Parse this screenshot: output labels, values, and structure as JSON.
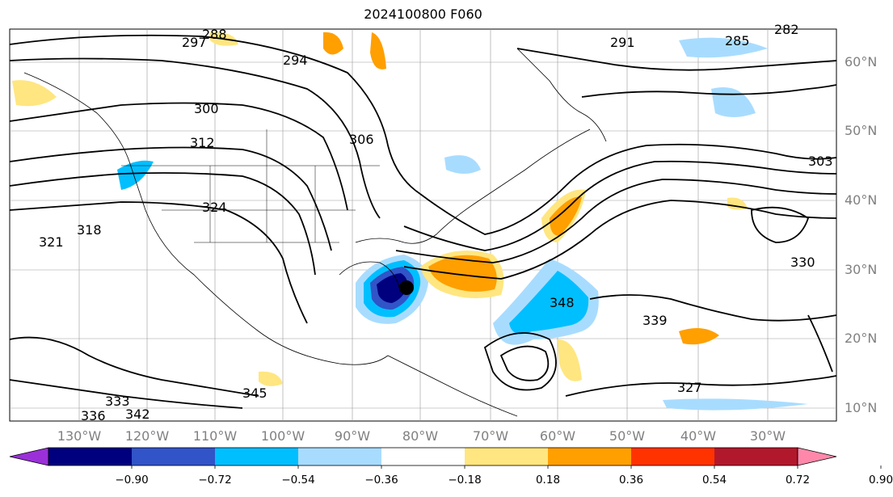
{
  "title": "2024100800 F060",
  "map": {
    "lon_labels": [
      "130°W",
      "120°W",
      "110°W",
      "100°W",
      "90°W",
      "80°W",
      "70°W",
      "60°W",
      "50°W",
      "40°W",
      "30°W"
    ],
    "lat_labels": [
      "60°N",
      "50°N",
      "40°N",
      "30°N",
      "20°N",
      "10°N"
    ],
    "contour_labels": [
      "288",
      "291",
      "297",
      "294",
      "300",
      "312",
      "324",
      "321",
      "318",
      "327",
      "333",
      "336",
      "342",
      "345",
      "348",
      "339",
      "330",
      "303",
      "285",
      "282",
      "306"
    ]
  },
  "colorbar": {
    "ticks": [
      "−0.90",
      "−0.72",
      "−0.54",
      "−0.36",
      "−0.18",
      "0.18",
      "0.36",
      "0.54",
      "0.72",
      "0.90"
    ],
    "colors": [
      "#9b30d9",
      "#00007f",
      "#3154c8",
      "#00bfff",
      "#a8dcff",
      "#ffffff",
      "#ffe680",
      "#ff9f00",
      "#ff3300",
      "#b2182b",
      "#ff88aa"
    ]
  },
  "feature": {
    "name": "low-center"
  }
}
